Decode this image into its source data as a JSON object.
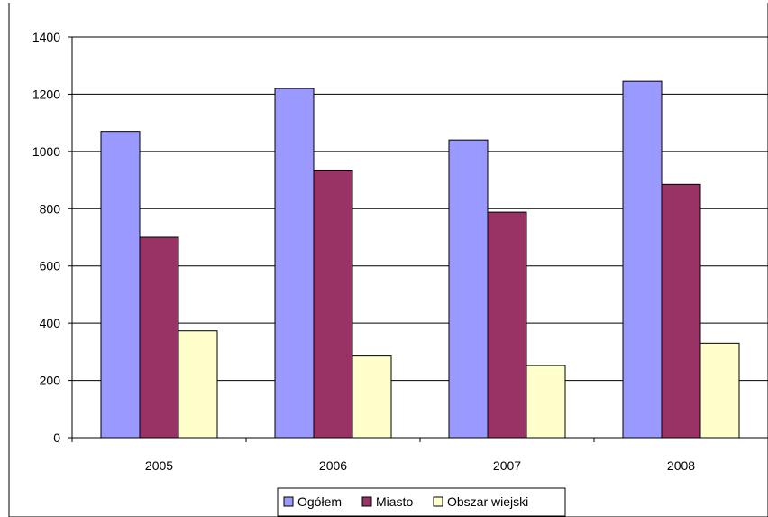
{
  "chart_data": {
    "type": "bar",
    "categories": [
      "2005",
      "2006",
      "2007",
      "2008"
    ],
    "series": [
      {
        "name": "Ogółem",
        "color": "#9999ff",
        "values": [
          1070,
          1220,
          1040,
          1245
        ]
      },
      {
        "name": "Miasto",
        "color": "#993366",
        "values": [
          700,
          935,
          788,
          885
        ]
      },
      {
        "name": "Obszar wiejski",
        "color": "#ffffcc",
        "values": [
          373,
          285,
          252,
          330
        ]
      }
    ],
    "ylim": [
      0,
      1400
    ],
    "yticks": [
      0,
      200,
      400,
      600,
      800,
      1000,
      1200,
      1400
    ],
    "grid": true,
    "legend_position": "bottom"
  }
}
